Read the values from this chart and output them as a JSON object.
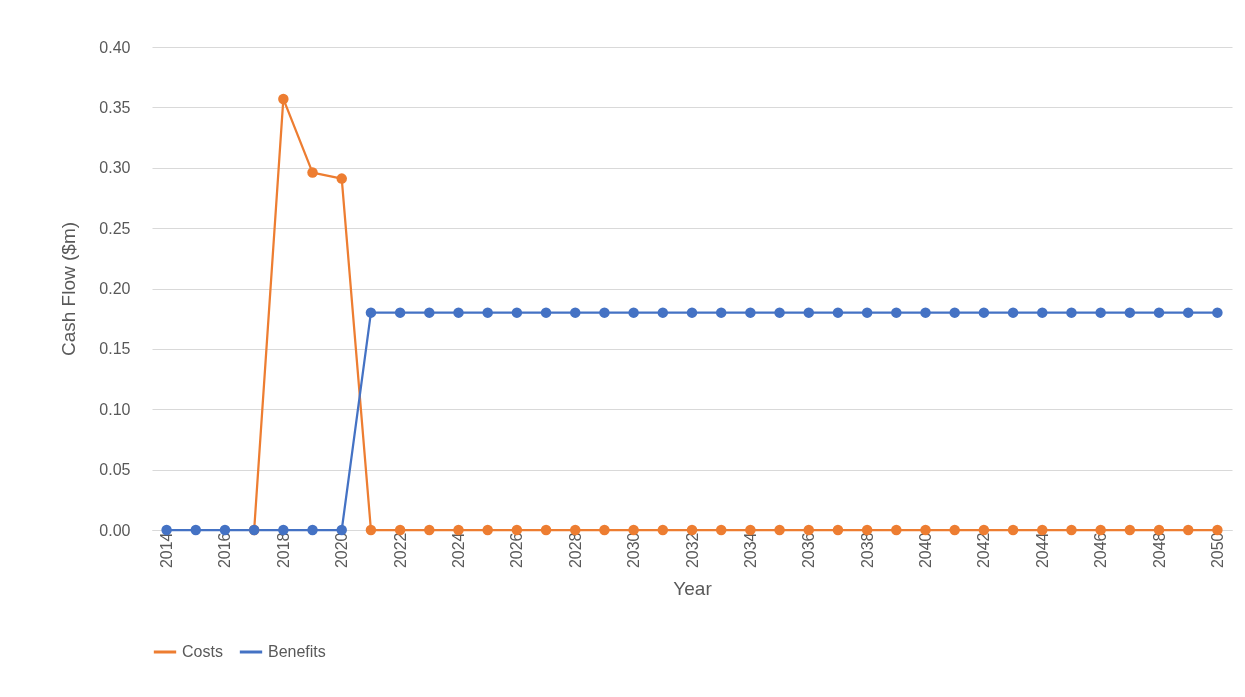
{
  "chart_data": {
    "type": "line",
    "xlabel": "Year",
    "ylabel": "Cash Flow ($m)",
    "x": [
      2014,
      2015,
      2016,
      2017,
      2018,
      2019,
      2020,
      2021,
      2022,
      2023,
      2024,
      2025,
      2026,
      2027,
      2028,
      2029,
      2030,
      2031,
      2032,
      2033,
      2034,
      2035,
      2036,
      2037,
      2038,
      2039,
      2040,
      2041,
      2042,
      2043,
      2044,
      2045,
      2046,
      2047,
      2048,
      2049,
      2050
    ],
    "series": [
      {
        "name": "Costs",
        "color": "#ed7d31",
        "values": [
          null,
          null,
          null,
          0,
          0.357,
          0.296,
          0.291,
          0,
          0,
          0,
          0,
          0,
          0,
          0,
          0,
          0,
          0,
          0,
          0,
          0,
          0,
          0,
          0,
          0,
          0,
          0,
          0,
          0,
          0,
          0,
          0,
          0,
          0,
          0,
          0,
          0,
          0
        ]
      },
      {
        "name": "Benefits",
        "color": "#4472c4",
        "values": [
          0,
          0,
          0,
          0,
          0,
          0,
          0,
          0.18,
          0.18,
          0.18,
          0.18,
          0.18,
          0.18,
          0.18,
          0.18,
          0.18,
          0.18,
          0.18,
          0.18,
          0.18,
          0.18,
          0.18,
          0.18,
          0.18,
          0.18,
          0.18,
          0.18,
          0.18,
          0.18,
          0.18,
          0.18,
          0.18,
          0.18,
          0.18,
          0.18,
          0.18,
          0.18
        ]
      }
    ],
    "xlim": [
      2013.5,
      2050.5
    ],
    "xticks": [
      2014,
      2016,
      2018,
      2020,
      2022,
      2024,
      2026,
      2028,
      2030,
      2032,
      2034,
      2036,
      2038,
      2040,
      2042,
      2044,
      2046,
      2048,
      2050
    ],
    "ylim": [
      0,
      0.4
    ],
    "yticks": [
      {
        "value": 0,
        "label": "0.00"
      },
      {
        "value": 0.05,
        "label": "0.05"
      },
      {
        "value": 0.1,
        "label": "0.10"
      },
      {
        "value": 0.15,
        "label": "0.15"
      },
      {
        "value": 0.2,
        "label": "0.20"
      },
      {
        "value": 0.25,
        "label": "0.25"
      },
      {
        "value": 0.3,
        "label": "0.30"
      },
      {
        "value": 0.35,
        "label": "0.35"
      },
      {
        "value": 0.4,
        "label": "0.40"
      }
    ],
    "grid": "y",
    "legend": "bottom",
    "marker": "circle",
    "line_style": "solid"
  }
}
